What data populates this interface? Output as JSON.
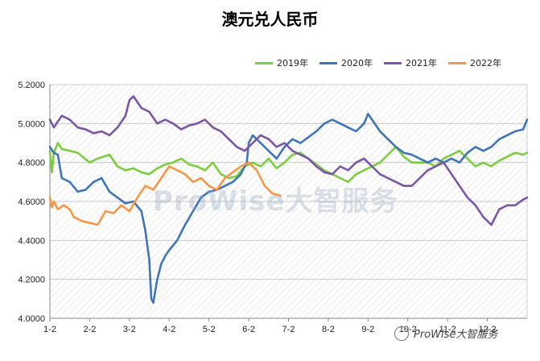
{
  "title": "澳元兑人民币",
  "watermark_center": "ProWise大智服务",
  "watermark_corner": "ProWise大智服务",
  "chart_data": {
    "type": "line",
    "title": "澳元兑人民币",
    "ylim": [
      4.0,
      5.2
    ],
    "yticks": [
      "4.0000",
      "4.2000",
      "4.4000",
      "4.6000",
      "4.8000",
      "5.0000",
      "5.2000"
    ],
    "xticks": [
      "1-2",
      "2-2",
      "3-2",
      "4-2",
      "5-2",
      "6-2",
      "7-2",
      "8-2",
      "9-2",
      "10-2",
      "11-2",
      "12-2"
    ],
    "legend_position": "top-right",
    "grid": true,
    "x_units": "month (1 = Jan 2)",
    "series": [
      {
        "name": "2019年",
        "color": "#7ccd3e",
        "x": [
          1.0,
          1.05,
          1.1,
          1.2,
          1.3,
          1.5,
          1.7,
          2.0,
          2.2,
          2.5,
          2.7,
          2.9,
          3.1,
          3.3,
          3.5,
          3.7,
          3.9,
          4.1,
          4.3,
          4.5,
          4.7,
          4.9,
          5.1,
          5.3,
          5.5,
          5.7,
          5.9,
          6.1,
          6.3,
          6.5,
          6.7,
          6.9,
          7.1,
          7.3,
          7.5,
          7.7,
          7.9,
          8.1,
          8.3,
          8.5,
          8.7,
          8.9,
          9.1,
          9.3,
          9.5,
          9.7,
          9.9,
          10.1,
          10.3,
          10.5,
          10.7,
          10.9,
          11.1,
          11.3,
          11.5,
          11.7,
          11.9,
          12.1,
          12.3,
          12.5,
          12.7,
          12.9,
          13.0
        ],
        "values": [
          4.86,
          4.75,
          4.85,
          4.9,
          4.87,
          4.86,
          4.85,
          4.8,
          4.82,
          4.84,
          4.78,
          4.76,
          4.77,
          4.75,
          4.74,
          4.77,
          4.79,
          4.8,
          4.82,
          4.79,
          4.78,
          4.76,
          4.8,
          4.74,
          4.72,
          4.73,
          4.78,
          4.8,
          4.78,
          4.82,
          4.77,
          4.8,
          4.84,
          4.85,
          4.82,
          4.79,
          4.76,
          4.74,
          4.72,
          4.7,
          4.74,
          4.76,
          4.78,
          4.8,
          4.84,
          4.88,
          4.83,
          4.8,
          4.8,
          4.8,
          4.78,
          4.82,
          4.84,
          4.86,
          4.82,
          4.78,
          4.8,
          4.78,
          4.81,
          4.83,
          4.85,
          4.84,
          4.85
        ]
      },
      {
        "name": "2020年",
        "color": "#3f74b8",
        "x": [
          1.0,
          1.1,
          1.2,
          1.3,
          1.5,
          1.7,
          1.9,
          2.1,
          2.3,
          2.5,
          2.7,
          2.9,
          3.1,
          3.3,
          3.4,
          3.5,
          3.55,
          3.6,
          3.7,
          3.8,
          3.9,
          4.0,
          4.2,
          4.4,
          4.6,
          4.8,
          5.0,
          5.2,
          5.4,
          5.6,
          5.8,
          5.95,
          6.0,
          6.1,
          6.3,
          6.5,
          6.7,
          6.9,
          7.1,
          7.3,
          7.5,
          7.7,
          7.9,
          8.1,
          8.3,
          8.5,
          8.7,
          8.9,
          9.0,
          9.1,
          9.3,
          9.5,
          9.7,
          9.9,
          10.1,
          10.3,
          10.5,
          10.7,
          10.9,
          11.1,
          11.3,
          11.5,
          11.7,
          11.9,
          12.1,
          12.3,
          12.5,
          12.7,
          12.9,
          13.0
        ],
        "values": [
          4.88,
          4.85,
          4.84,
          4.72,
          4.7,
          4.65,
          4.66,
          4.7,
          4.72,
          4.65,
          4.62,
          4.59,
          4.6,
          4.55,
          4.45,
          4.3,
          4.1,
          4.08,
          4.2,
          4.28,
          4.32,
          4.35,
          4.4,
          4.48,
          4.55,
          4.62,
          4.65,
          4.66,
          4.68,
          4.7,
          4.74,
          4.8,
          4.9,
          4.94,
          4.9,
          4.86,
          4.82,
          4.88,
          4.92,
          4.9,
          4.93,
          4.96,
          5.0,
          5.02,
          5.0,
          4.98,
          4.96,
          5.0,
          5.05,
          5.02,
          4.96,
          4.92,
          4.88,
          4.85,
          4.84,
          4.82,
          4.8,
          4.82,
          4.8,
          4.82,
          4.8,
          4.85,
          4.88,
          4.86,
          4.88,
          4.92,
          4.94,
          4.96,
          4.97,
          5.02
        ]
      },
      {
        "name": "2021年",
        "color": "#7b55a6",
        "x": [
          1.0,
          1.1,
          1.3,
          1.5,
          1.7,
          1.9,
          2.1,
          2.3,
          2.5,
          2.7,
          2.9,
          3.0,
          3.1,
          3.3,
          3.5,
          3.7,
          3.9,
          4.1,
          4.3,
          4.5,
          4.7,
          4.9,
          5.1,
          5.3,
          5.5,
          5.7,
          5.9,
          6.1,
          6.3,
          6.5,
          6.7,
          6.9,
          7.1,
          7.3,
          7.5,
          7.7,
          7.9,
          8.1,
          8.3,
          8.5,
          8.7,
          8.9,
          9.1,
          9.3,
          9.5,
          9.7,
          9.9,
          10.1,
          10.3,
          10.5,
          10.7,
          10.9,
          11.1,
          11.3,
          11.5,
          11.7,
          11.9,
          12.1,
          12.3,
          12.5,
          12.7,
          12.9,
          13.0
        ],
        "values": [
          5.02,
          4.98,
          5.04,
          5.02,
          4.98,
          4.97,
          4.95,
          4.96,
          4.94,
          4.98,
          5.04,
          5.12,
          5.14,
          5.08,
          5.06,
          5.0,
          5.02,
          5.0,
          4.97,
          4.99,
          5.0,
          5.02,
          4.98,
          4.96,
          4.92,
          4.88,
          4.86,
          4.9,
          4.94,
          4.92,
          4.88,
          4.9,
          4.86,
          4.84,
          4.82,
          4.78,
          4.75,
          4.74,
          4.78,
          4.76,
          4.8,
          4.82,
          4.78,
          4.74,
          4.72,
          4.7,
          4.68,
          4.68,
          4.72,
          4.76,
          4.78,
          4.8,
          4.74,
          4.68,
          4.62,
          4.58,
          4.52,
          4.48,
          4.56,
          4.58,
          4.58,
          4.61,
          4.62
        ]
      },
      {
        "name": "2022年",
        "color": "#f79646",
        "x": [
          1.0,
          1.05,
          1.1,
          1.2,
          1.35,
          1.5,
          1.6,
          1.8,
          2.0,
          2.2,
          2.4,
          2.6,
          2.8,
          3.0,
          3.2,
          3.4,
          3.6,
          3.8,
          4.0,
          4.2,
          4.4,
          4.6,
          4.8,
          5.0,
          5.2,
          5.4,
          5.6,
          5.8,
          6.0,
          6.2,
          6.4,
          6.6,
          6.8
        ],
        "values": [
          4.62,
          4.57,
          4.6,
          4.56,
          4.58,
          4.56,
          4.52,
          4.5,
          4.49,
          4.48,
          4.55,
          4.54,
          4.58,
          4.55,
          4.62,
          4.68,
          4.66,
          4.72,
          4.78,
          4.76,
          4.74,
          4.7,
          4.72,
          4.68,
          4.66,
          4.72,
          4.75,
          4.78,
          4.8,
          4.76,
          4.68,
          4.64,
          4.63
        ]
      }
    ]
  }
}
